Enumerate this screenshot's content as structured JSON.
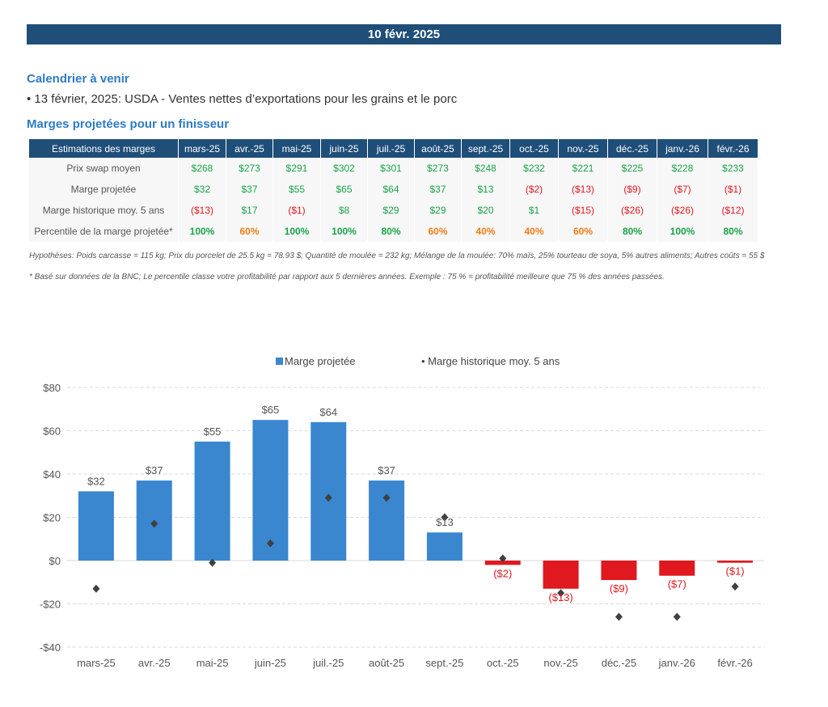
{
  "date_banner": "10 févr. 2025",
  "calendar": {
    "title": "Calendrier à venir",
    "item": "• 13 février, 2025: USDA - Ventes nettes d’exportations pour les grains et le porc"
  },
  "margins_section": {
    "title": "Marges projetées pour un finisseur"
  },
  "table": {
    "corner": "Estimations des marges",
    "months": [
      "mars-25",
      "avr.-25",
      "mai-25",
      "juin-25",
      "juil.-25",
      "août-25",
      "sept.-25",
      "oct.-25",
      "nov.-25",
      "déc.-25",
      "janv.-26",
      "févr.-26"
    ],
    "rows": [
      {
        "label": "Prix swap moyen",
        "cells": [
          "$268",
          "$273",
          "$291",
          "$302",
          "$301",
          "$273",
          "$248",
          "$232",
          "$221",
          "$225",
          "$228",
          "$233"
        ],
        "classes": [
          "pos",
          "pos",
          "pos",
          "pos",
          "pos",
          "pos",
          "pos",
          "pos",
          "pos",
          "pos",
          "pos",
          "pos"
        ]
      },
      {
        "label": "Marge projetée",
        "cells": [
          "$32",
          "$37",
          "$55",
          "$65",
          "$64",
          "$37",
          "$13",
          "($2)",
          "($13)",
          "($9)",
          "($7)",
          "($1)"
        ],
        "classes": [
          "pos",
          "pos",
          "pos",
          "pos",
          "pos",
          "pos",
          "pos",
          "neg",
          "neg",
          "neg",
          "neg",
          "neg"
        ]
      },
      {
        "label": "Marge historique moy. 5 ans",
        "cells": [
          "($13)",
          "$17",
          "($1)",
          "$8",
          "$29",
          "$29",
          "$20",
          "$1",
          "($15)",
          "($26)",
          "($26)",
          "($12)"
        ],
        "classes": [
          "neg",
          "pos",
          "neg",
          "pos",
          "pos",
          "pos",
          "pos",
          "pos",
          "neg",
          "neg",
          "neg",
          "neg"
        ]
      },
      {
        "label": "Percentile de la marge projetée*",
        "cells": [
          "100%",
          "60%",
          "100%",
          "100%",
          "80%",
          "60%",
          "40%",
          "40%",
          "60%",
          "80%",
          "100%",
          "80%"
        ],
        "classes": [
          "pct-green",
          "pct-orange",
          "pct-green",
          "pct-green",
          "pct-green",
          "pct-orange",
          "pct-orange",
          "pct-orange",
          "pct-orange",
          "pct-green",
          "pct-green",
          "pct-green"
        ]
      }
    ]
  },
  "notes": {
    "hypotheses": "Hypothèses: Poids carcasse = 115 kg; Prix du porcelet de 25.5 kg = 78.93 $; Quantité de moulée = 232 kg; Mélange de la moulée: 70% maïs, 25% tourteau de soya, 5% autres aliments; Autres coûts = 55 $",
    "footnote": "* Basé sur données de la BNC; Le percentile classe votre profitabilité par rapport aux 5 dernières années. Exemple : 75 % = profitabilité meilleure que 75 % des années passées."
  },
  "chart_data": {
    "type": "bar",
    "categories": [
      "mars-25",
      "avr.-25",
      "mai-25",
      "juin-25",
      "juil.-25",
      "août-25",
      "sept.-25",
      "oct.-25",
      "nov.-25",
      "déc.-25",
      "janv.-26",
      "févr.-26"
    ],
    "series": [
      {
        "name": "Marge projetée",
        "type": "bar",
        "values": [
          32,
          37,
          55,
          65,
          64,
          37,
          13,
          -2,
          -13,
          -9,
          -7,
          -1
        ],
        "labels": [
          "$32",
          "$37",
          "$55",
          "$65",
          "$64",
          "$37",
          "$13",
          "($2)",
          "($13)",
          "($9)",
          "($7)",
          "($1)"
        ]
      },
      {
        "name": "Marge historique moy. 5 ans",
        "type": "scatter",
        "values": [
          -13,
          17,
          -1,
          8,
          29,
          29,
          20,
          1,
          -15,
          -26,
          -26,
          -12
        ]
      }
    ],
    "ylim": [
      -40,
      80
    ],
    "yticks": [
      -40,
      -20,
      0,
      20,
      40,
      60,
      80
    ],
    "ytick_labels": [
      "-$40",
      "-$20",
      "$0",
      "$20",
      "$40",
      "$60",
      "$80"
    ],
    "grid": true,
    "legend": "top-center",
    "colors": {
      "positive_bar": "#3a87d0",
      "negative_bar": "#e0181f",
      "marker": "#404040",
      "label_pos": "#555555",
      "label_neg": "#e0181f"
    },
    "legend_bar_label": "Marge projetée",
    "legend_marker_label": "• Marge historique moy. 5 ans"
  }
}
